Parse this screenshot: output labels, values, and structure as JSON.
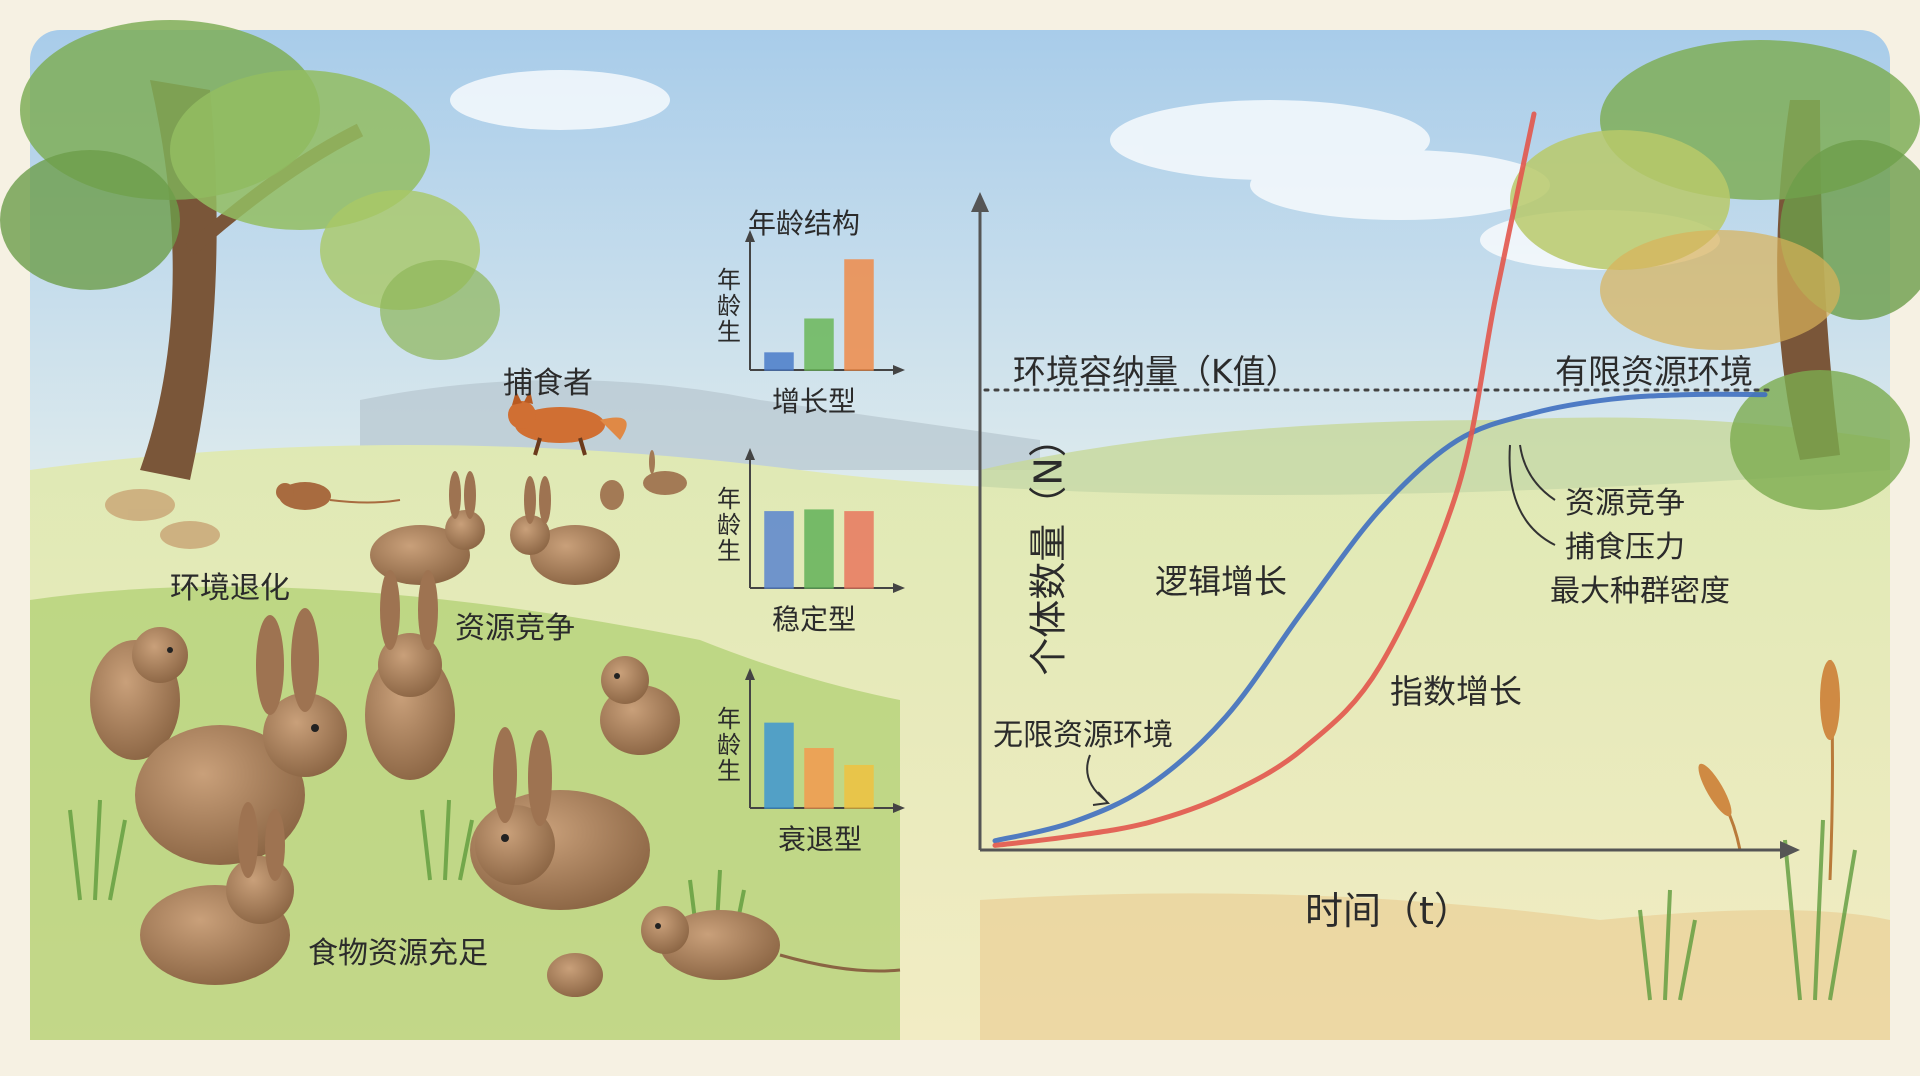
{
  "scene": {
    "labels": {
      "predator": "捕食者",
      "degradation": "环境退化",
      "competition": "资源竞争",
      "food": "食物资源充足"
    }
  },
  "age_structure": {
    "title": "年龄结构",
    "y_label": "年龄生",
    "charts": [
      {
        "label": "增长型",
        "values": [
          1,
          3,
          6.5
        ],
        "colors": [
          "#4a7cc9",
          "#6bb85a",
          "#ef8c4a"
        ]
      },
      {
        "label": "稳定型",
        "values": [
          4.5,
          4.6,
          4.5
        ],
        "colors": [
          "#5b86cf",
          "#63b25a",
          "#e9785e"
        ]
      },
      {
        "label": "衰退型",
        "values": [
          5,
          3.5,
          2.5
        ],
        "colors": [
          "#3f97d2",
          "#f39a4f",
          "#f0c240"
        ]
      }
    ]
  },
  "chart_data": {
    "type": "line",
    "ylabel": "个体数量（N）",
    "xlabel": "时间（t）",
    "reference_line": {
      "label": "环境容纳量（K值）",
      "y": 1.0
    },
    "series": [
      {
        "name": "逻辑增长",
        "color": "#3f6fc0",
        "x": [
          0,
          0.1,
          0.2,
          0.3,
          0.4,
          0.5,
          0.6,
          0.7,
          0.8,
          0.9,
          1.0
        ],
        "y": [
          0.02,
          0.06,
          0.14,
          0.29,
          0.52,
          0.74,
          0.89,
          0.95,
          0.98,
          0.99,
          0.99
        ]
      },
      {
        "name": "指数增长",
        "color": "#e2574c",
        "x": [
          0,
          0.1,
          0.2,
          0.3,
          0.4,
          0.5,
          0.6,
          0.65,
          0.7
        ],
        "y": [
          0.01,
          0.03,
          0.06,
          0.12,
          0.22,
          0.4,
          0.78,
          1.2,
          1.6
        ]
      }
    ],
    "annotations": {
      "unlimited": "无限资源环境",
      "limited": "有限资源环境",
      "factors": [
        "资源竞争",
        "捕食压力",
        "最大种群密度"
      ]
    },
    "colors": {
      "axis": "#555555",
      "k_line": "#444444"
    }
  }
}
